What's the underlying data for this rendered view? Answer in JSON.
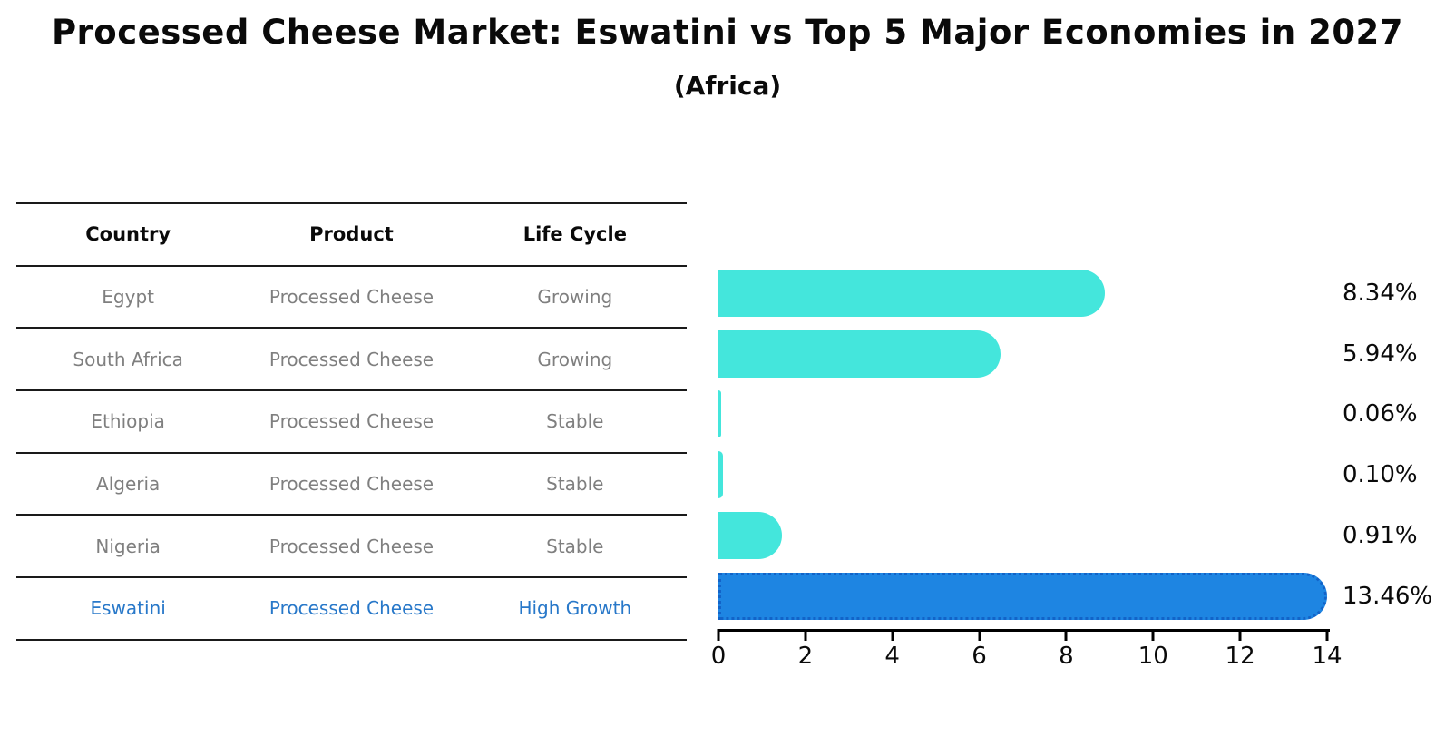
{
  "title": "Processed Cheese Market: Eswatini vs Top 5 Major Economies in 2027",
  "subtitle": "(Africa)",
  "table": {
    "headers": [
      "Country",
      "Product",
      "Life Cycle"
    ],
    "rows": [
      {
        "country": "Egypt",
        "product": "Processed Cheese",
        "life_cycle": "Growing"
      },
      {
        "country": "South Africa",
        "product": "Processed Cheese",
        "life_cycle": "Growing"
      },
      {
        "country": "Ethiopia",
        "product": "Processed Cheese",
        "life_cycle": "Stable"
      },
      {
        "country": "Algeria",
        "product": "Processed Cheese",
        "life_cycle": "Stable"
      },
      {
        "country": "Nigeria",
        "product": "Processed Cheese",
        "life_cycle": "Stable"
      },
      {
        "country": "Eswatini",
        "product": "Processed Cheese",
        "life_cycle": "High Growth"
      }
    ]
  },
  "chart_data": {
    "type": "bar",
    "orientation": "horizontal",
    "title": "Processed Cheese Market: Eswatini vs Top 5 Major Economies in 2027 (Africa)",
    "categories": [
      "Egypt",
      "South Africa",
      "Ethiopia",
      "Algeria",
      "Nigeria",
      "Eswatini"
    ],
    "values": [
      8.34,
      5.94,
      0.06,
      0.1,
      0.91,
      13.46
    ],
    "value_labels": [
      "8.34%",
      "5.94%",
      "0.06%",
      "0.10%",
      "0.91%",
      "13.46%"
    ],
    "xlim": [
      0,
      14
    ],
    "x_ticks": [
      0,
      2,
      4,
      6,
      8,
      10,
      12,
      14
    ],
    "grid": "off",
    "legend": "none",
    "highlight_index": 5,
    "bar_color": "#44e6dc",
    "highlight_bar_color": "#1e85e2",
    "highlight_border_color": "#1263c8",
    "highlight_text_color": "#2878c9"
  }
}
